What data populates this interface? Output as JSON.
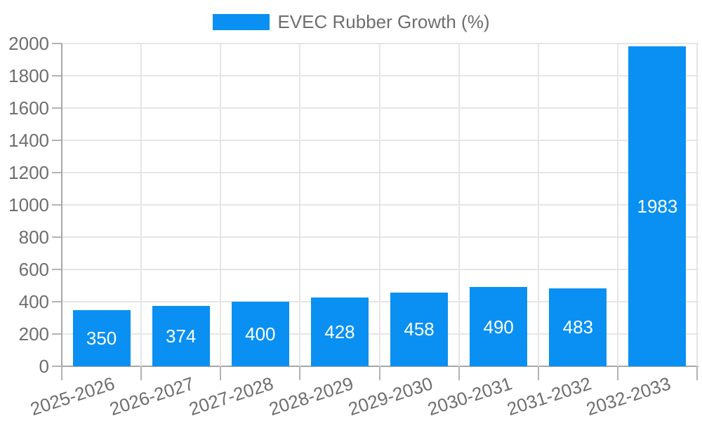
{
  "legend": {
    "label": "EVEC Rubber Growth (%)",
    "swatch_color": "#0990f2"
  },
  "chart_data": {
    "type": "bar",
    "title": "",
    "series_name": "EVEC Rubber Growth (%)",
    "categories": [
      "2025-2026",
      "2026-2027",
      "2027-2028",
      "2028-2029",
      "2029-2030",
      "2030-2031",
      "2031-2032",
      "2032-2033"
    ],
    "values": [
      350,
      374,
      400,
      428,
      458,
      490,
      483,
      1983
    ],
    "yticks": [
      0,
      200,
      400,
      600,
      800,
      1000,
      1200,
      1400,
      1600,
      1800,
      2000
    ],
    "ylim": [
      0,
      2000
    ],
    "ytick_step": 200,
    "xlabel": "",
    "ylabel": "",
    "grid": true,
    "legend_position": "top",
    "x_tick_rotation_deg": -18,
    "bar_color": "#0990f2",
    "value_label_color": "#ffffff"
  },
  "colors": {
    "background": "#ffffff",
    "axis_line": "#a6a6a6",
    "gridline": "#e6e6e6",
    "tick_mark": "#b3b3b3",
    "tick_label": "#6e6e6e"
  }
}
